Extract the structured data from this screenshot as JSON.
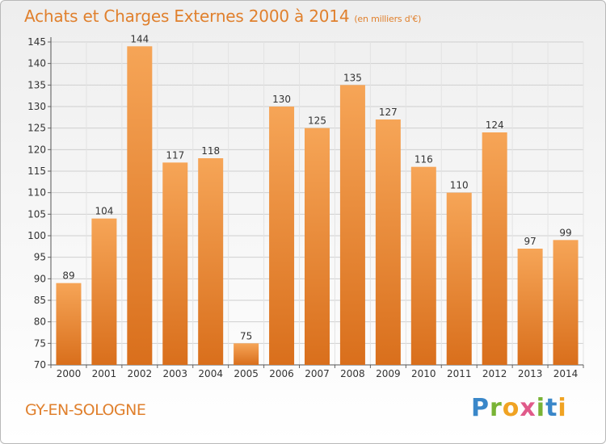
{
  "title": "Achats et Charges Externes 2000 à 2014",
  "subtitle": "(en milliers d'€)",
  "location": "GY-EN-SOLOGNE",
  "logo": {
    "name": "Proxiti",
    "letters": [
      "P",
      "r",
      "o",
      "x",
      "i",
      "t",
      "i"
    ]
  },
  "colors": {
    "bar_light": "#f6a557",
    "bar_dark": "#d96f1c",
    "text_accent": "#e0802d"
  },
  "chart_data": {
    "type": "bar",
    "categories": [
      "2000",
      "2001",
      "2002",
      "2003",
      "2004",
      "2005",
      "2006",
      "2007",
      "2008",
      "2009",
      "2010",
      "2011",
      "2012",
      "2013",
      "2014"
    ],
    "values": [
      89,
      104,
      144,
      117,
      118,
      75,
      130,
      125,
      135,
      127,
      116,
      110,
      124,
      97,
      99
    ],
    "ylim": [
      70,
      145
    ],
    "yticks": [
      70,
      75,
      80,
      85,
      90,
      95,
      100,
      105,
      110,
      115,
      120,
      125,
      130,
      135,
      140,
      145
    ],
    "grid": true,
    "xlabel": "",
    "ylabel": ""
  }
}
